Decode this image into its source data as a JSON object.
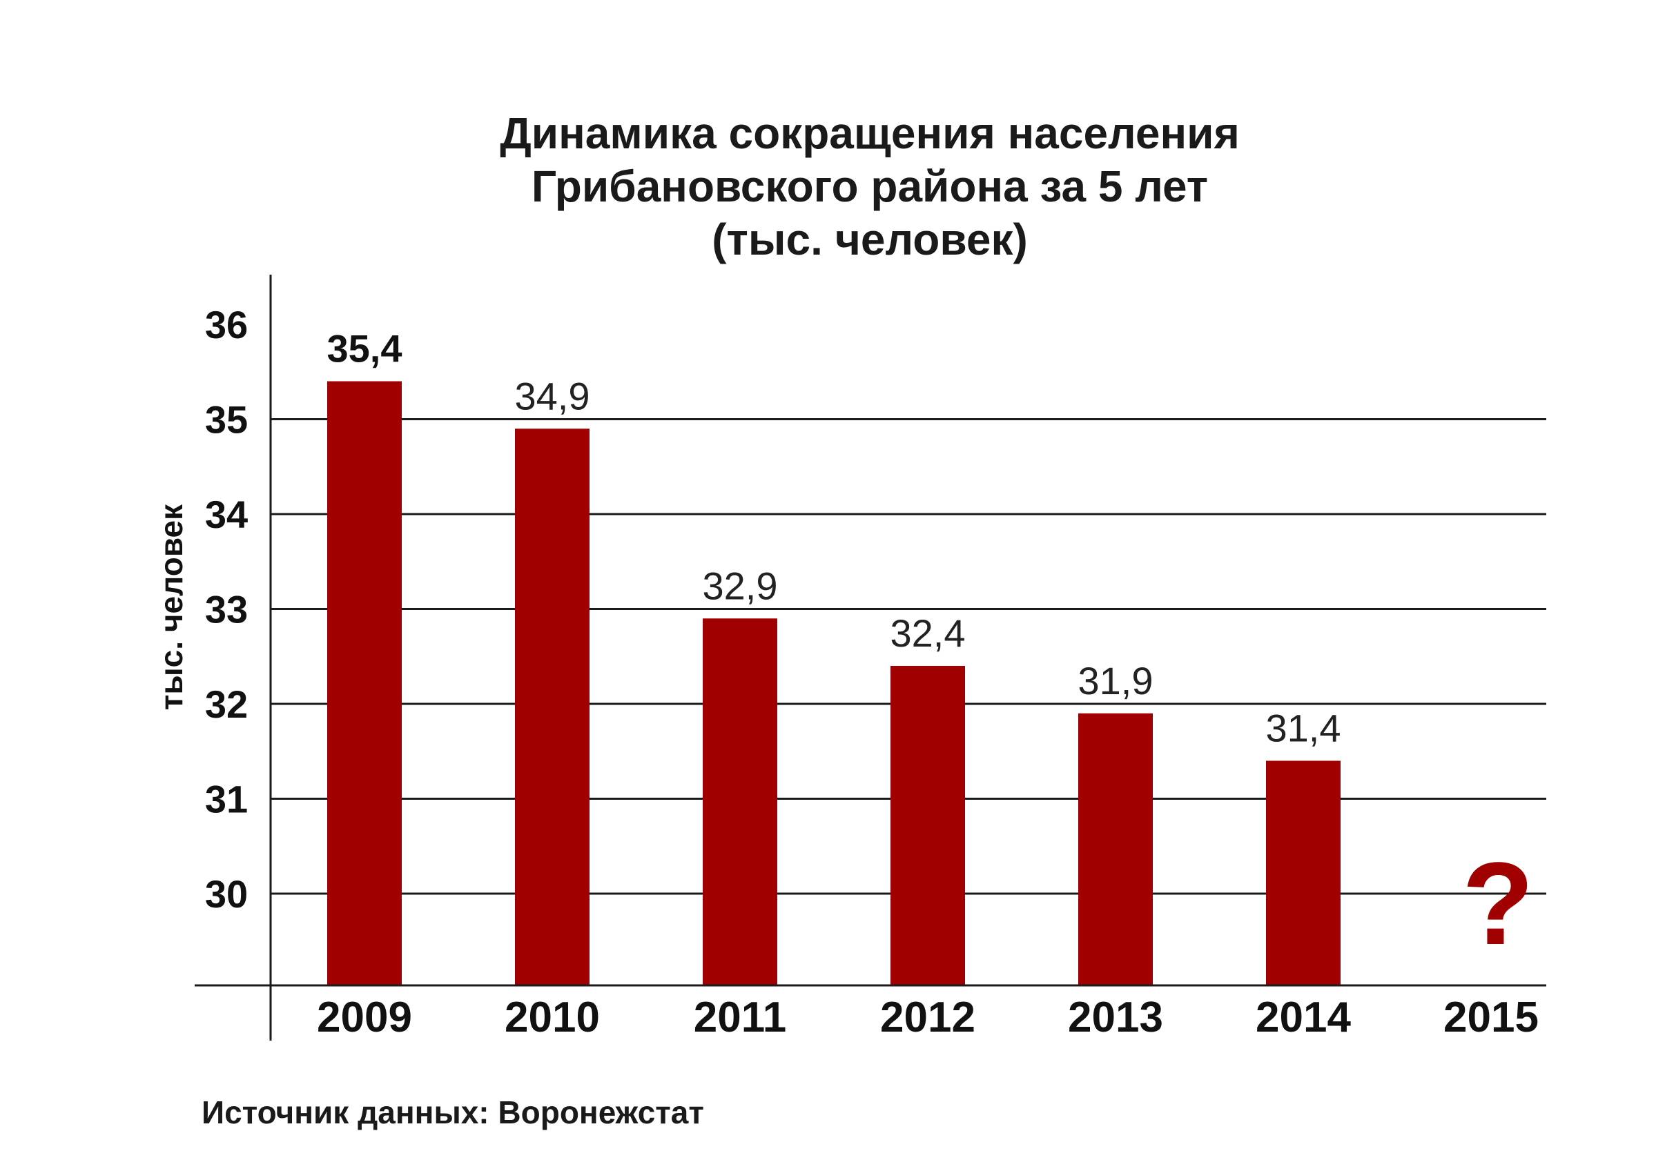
{
  "chart_data": {
    "type": "bar",
    "title_lines": [
      "Динамика сокращения населения",
      "Грибановского района за 5 лет",
      "(тыс. человек)"
    ],
    "ylabel": "тыс. человек",
    "xlabel": "",
    "categories": [
      "2009",
      "2010",
      "2011",
      "2012",
      "2013",
      "2014",
      "2015"
    ],
    "values": [
      35.4,
      34.9,
      32.9,
      32.4,
      31.9,
      31.4,
      null
    ],
    "value_labels": [
      "35,4",
      "34,9",
      "32,9",
      "32,4",
      "31,9",
      "31,4",
      ""
    ],
    "yticks": [
      30,
      31,
      32,
      33,
      34,
      35,
      36
    ],
    "ytick_labels": [
      "30",
      "31",
      "32",
      "33",
      "34",
      "35",
      "36"
    ],
    "ylim": [
      29,
      36.5
    ],
    "grid": true,
    "legend": "none",
    "bar_color": "#a00000",
    "unknown_marker": "?",
    "unknown_marker_color": "#a00000",
    "source": "Источник данных: Воронежстат"
  }
}
